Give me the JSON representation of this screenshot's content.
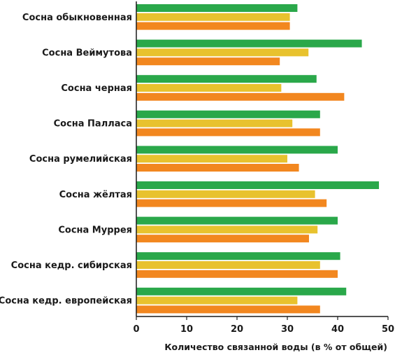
{
  "chart_data": {
    "type": "bar",
    "orientation": "horizontal",
    "title": "",
    "xlabel": "Количество связанной воды (в % от общей)",
    "ylabel": "",
    "xlim": [
      0,
      50
    ],
    "xticks": [
      "0",
      "10",
      "20",
      "30",
      "40",
      "50"
    ],
    "grid": false,
    "legend": "none",
    "categories": [
      "Сосна обыкновенная",
      "Сосна Веймутова",
      "Сосна черная",
      "Сосна Палласа",
      "Сосна румелийская",
      "Сосна жёлтая",
      "Сосна Муррея",
      "Сосна кедр. сибирская",
      "Сосна кедр. европейская"
    ],
    "series": [
      {
        "color": "#2aa84a",
        "values": [
          32,
          44.8,
          35.8,
          36.5,
          40,
          48.2,
          40,
          40.5,
          41.7
        ]
      },
      {
        "color": "#e8c22e",
        "values": [
          30.5,
          34.2,
          28.8,
          31,
          30,
          35.5,
          36,
          36.5,
          32
        ]
      },
      {
        "color": "#f2871f",
        "values": [
          30.5,
          28.5,
          41.3,
          36.5,
          32.3,
          37.8,
          34.3,
          40,
          36.5
        ]
      }
    ]
  }
}
